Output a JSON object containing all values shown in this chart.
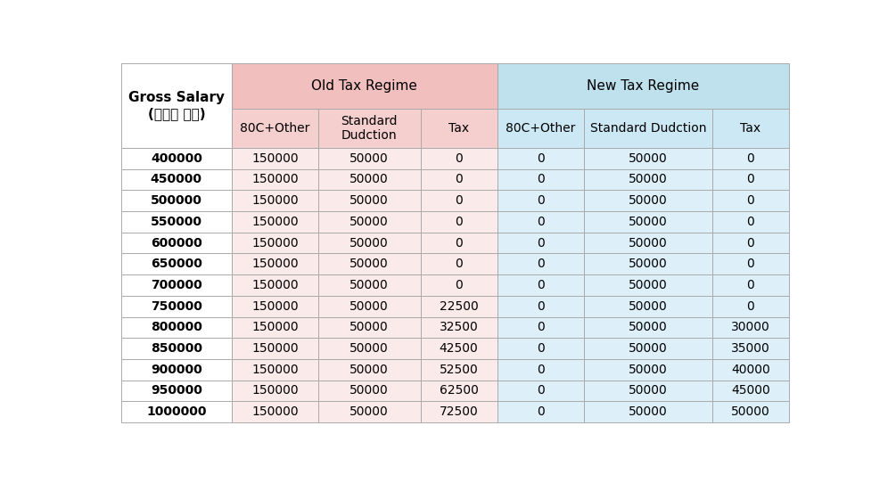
{
  "col0_header_line1": "Gross Salary",
  "col0_header_line2": "(कुल आय)",
  "old_regime_header": "Old Tax Regime",
  "new_regime_header": "New Tax Regime",
  "sub_headers_old": [
    "80C+Other",
    "Standard\nDudction",
    "Tax"
  ],
  "sub_headers_new": [
    "80C+Other",
    "Standard Dudction",
    "Tax"
  ],
  "gross_salaries": [
    "400000",
    "450000",
    "500000",
    "550000",
    "600000",
    "650000",
    "700000",
    "750000",
    "800000",
    "850000",
    "900000",
    "950000",
    "1000000"
  ],
  "old_80c": [
    150000,
    150000,
    150000,
    150000,
    150000,
    150000,
    150000,
    150000,
    150000,
    150000,
    150000,
    150000,
    150000
  ],
  "old_std": [
    50000,
    50000,
    50000,
    50000,
    50000,
    50000,
    50000,
    50000,
    50000,
    50000,
    50000,
    50000,
    50000
  ],
  "old_tax": [
    0,
    0,
    0,
    0,
    0,
    0,
    0,
    22500,
    32500,
    42500,
    52500,
    62500,
    72500
  ],
  "new_80c": [
    0,
    0,
    0,
    0,
    0,
    0,
    0,
    0,
    0,
    0,
    0,
    0,
    0
  ],
  "new_std": [
    50000,
    50000,
    50000,
    50000,
    50000,
    50000,
    50000,
    50000,
    50000,
    50000,
    50000,
    50000,
    50000
  ],
  "new_tax": [
    0,
    0,
    0,
    0,
    0,
    0,
    0,
    0,
    30000,
    35000,
    40000,
    45000,
    50000
  ],
  "bg_color": "#ffffff",
  "col0_header_bg": "#ffffff",
  "old_regime_header_bg": "#f2bfbf",
  "new_regime_header_bg": "#bfe0ed",
  "old_sub_bg": "#f5cece",
  "new_sub_bg": "#cce8f4",
  "old_data_bg": "#faeaea",
  "new_data_bg": "#ddf0f9",
  "col0_data_bg": "#ffffff",
  "grid_color": "#aaaaaa",
  "font_size_regime": 11,
  "font_size_subheader": 10,
  "font_size_salary": 10,
  "font_size_data": 10
}
